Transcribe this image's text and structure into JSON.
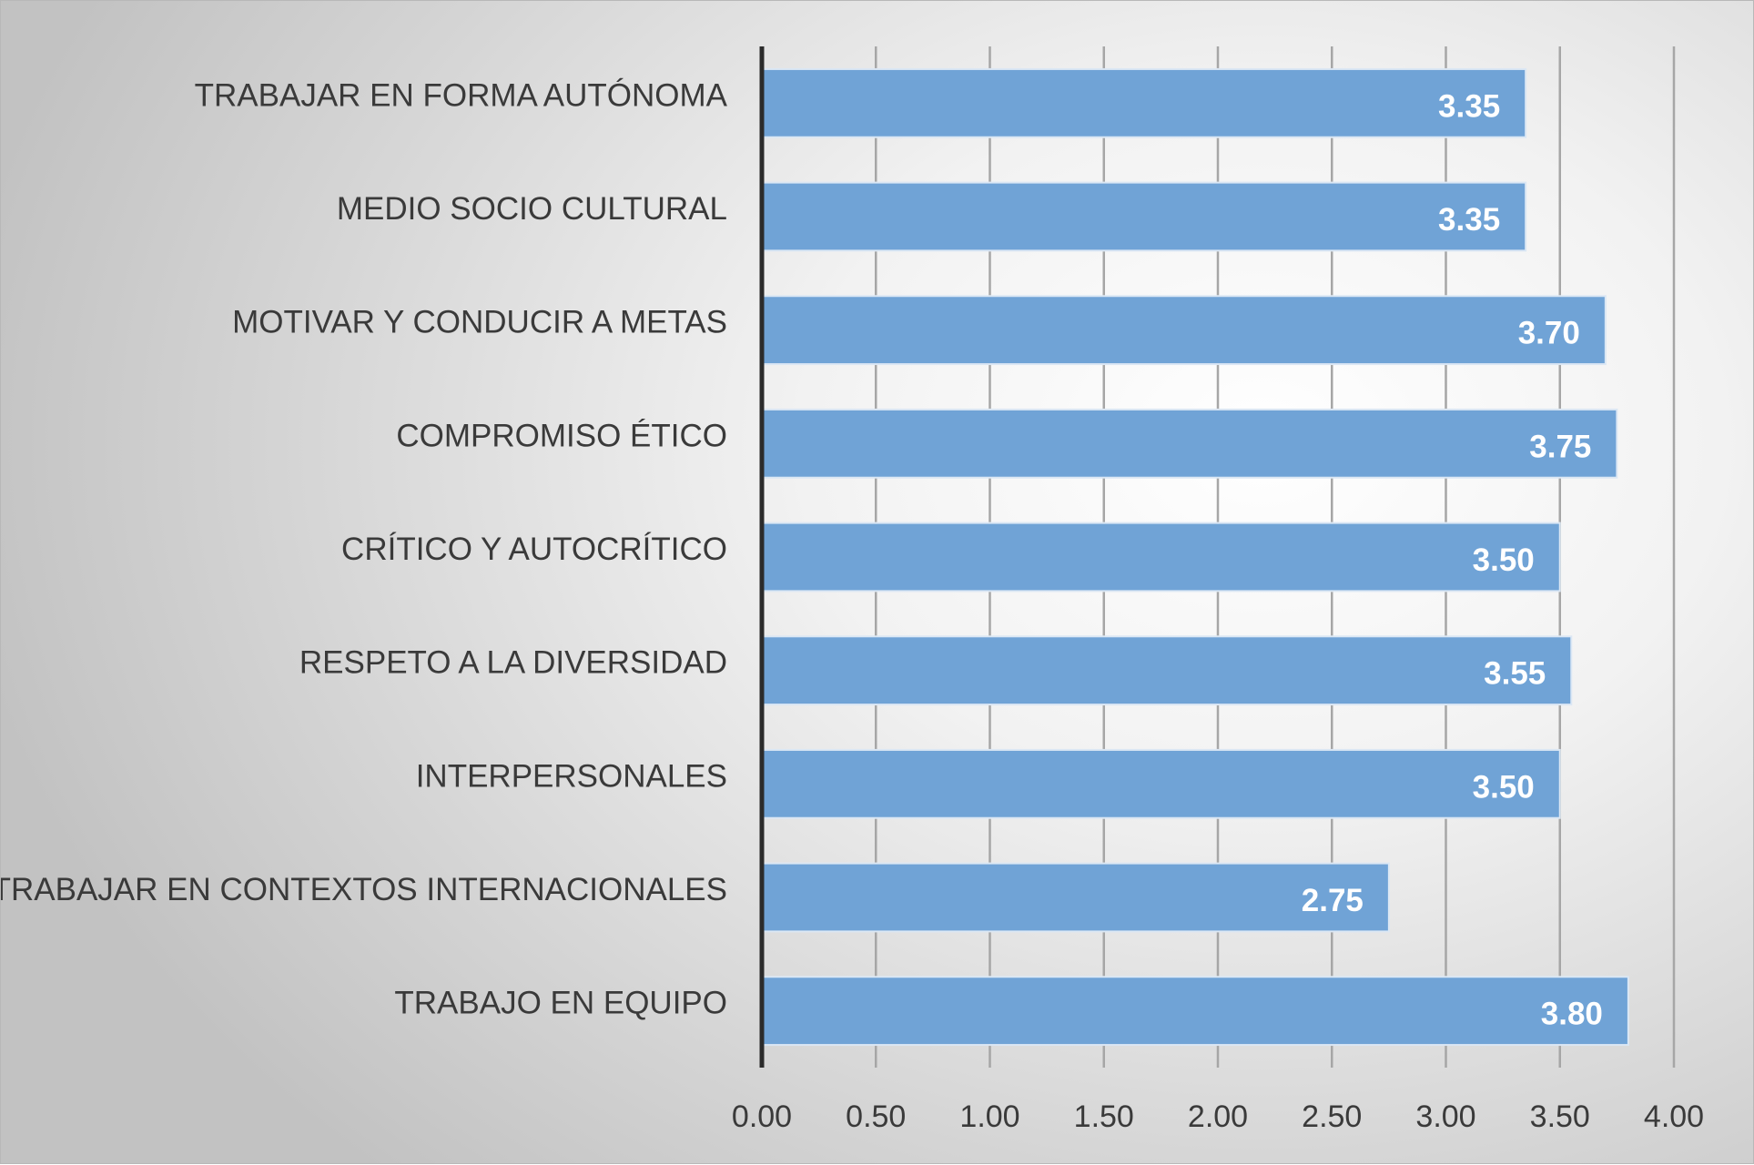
{
  "chart_data": {
    "type": "bar",
    "orientation": "horizontal",
    "categories": [
      "TRABAJAR EN FORMA AUTÓNOMA",
      "MEDIO SOCIO CULTURAL",
      "MOTIVAR Y CONDUCIR A METAS",
      "COMPROMISO ÉTICO",
      "CRÍTICO Y AUTOCRÍTICO",
      "RESPETO A LA DIVERSIDAD",
      "INTERPERSONALES",
      "TRABAJAR EN CONTEXTOS INTERNACIONALES",
      "TRABAJO EN EQUIPO"
    ],
    "values": [
      3.35,
      3.35,
      3.7,
      3.75,
      3.5,
      3.55,
      3.5,
      2.75,
      3.8
    ],
    "data_labels": [
      "3.35",
      "3.35",
      "3.70",
      "3.75",
      "3.50",
      "3.55",
      "3.50",
      "2.75",
      "3.80"
    ],
    "xlim": [
      0,
      4
    ],
    "x_ticks": [
      "0.00",
      "0.50",
      "1.00",
      "1.50",
      "2.00",
      "2.50",
      "3.00",
      "3.50",
      "4.00"
    ],
    "grid": true,
    "legend": "none",
    "title": "",
    "xlabel": "",
    "ylabel": "",
    "bar_color": "#70a3d6"
  }
}
